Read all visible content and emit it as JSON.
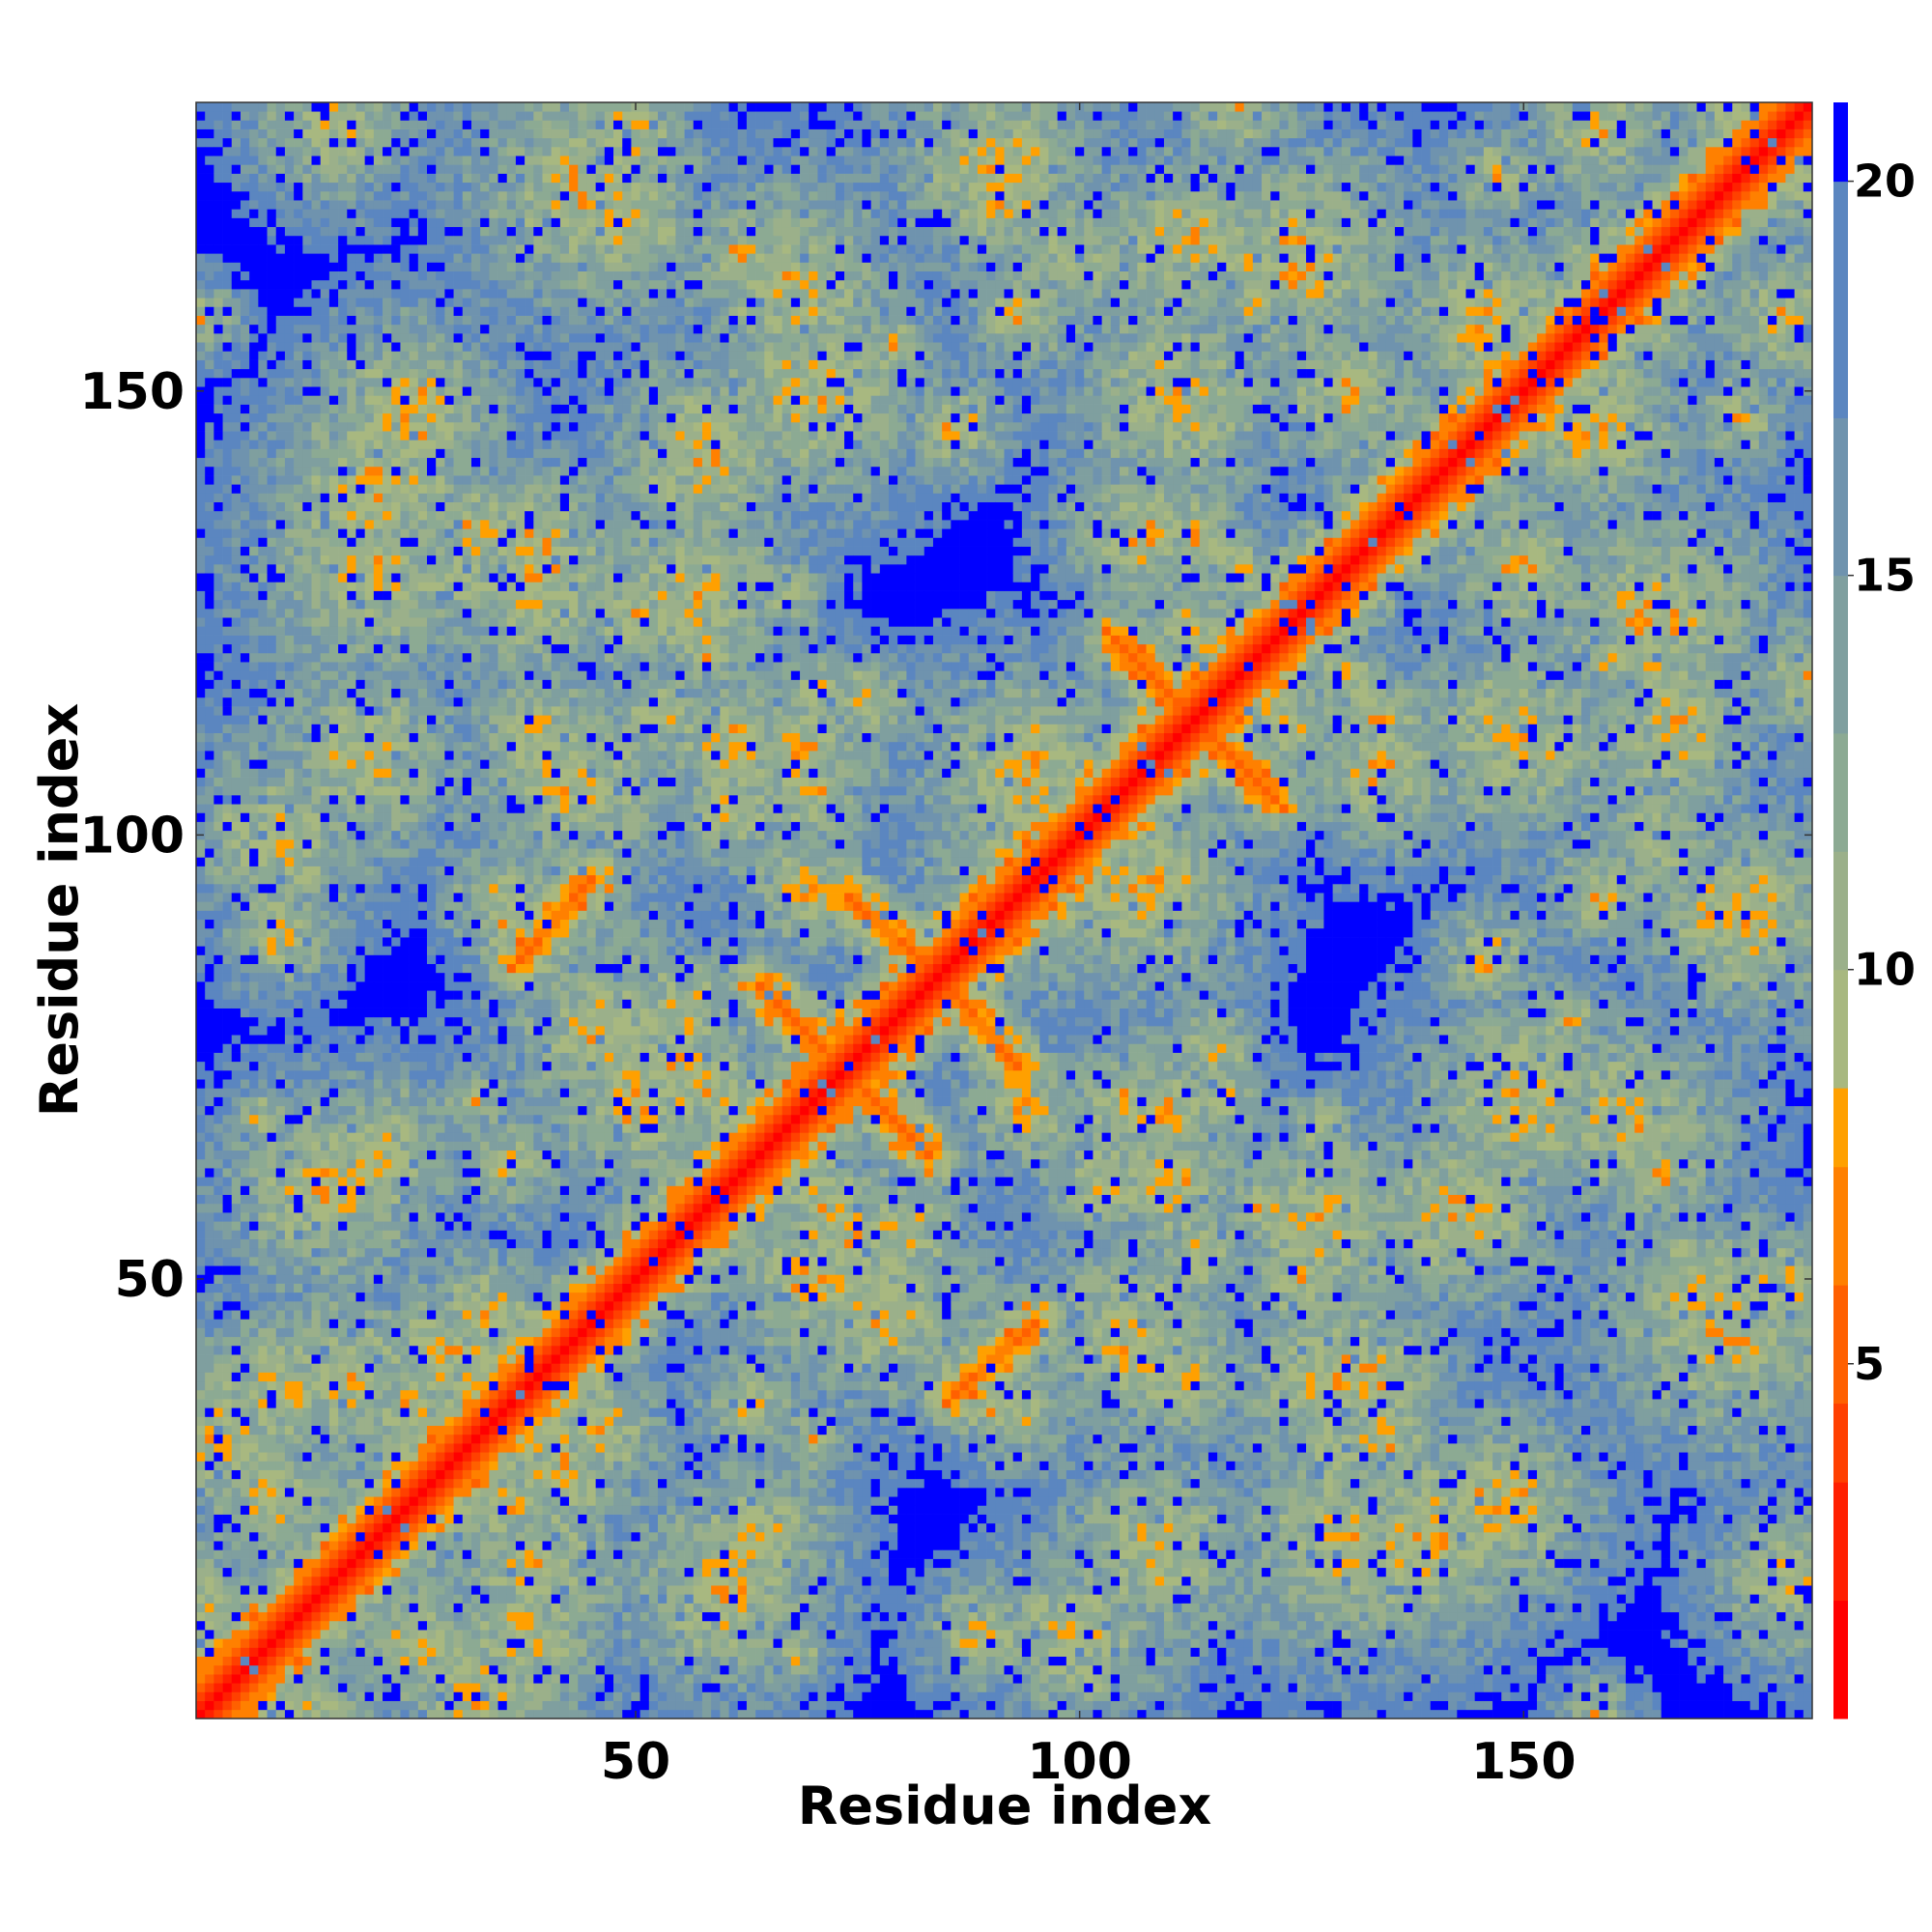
{
  "chart_data": {
    "type": "heatmap",
    "title": "",
    "xlabel": "Residue index",
    "ylabel": "Residue index",
    "xlim": [
      1,
      182
    ],
    "ylim": [
      1,
      182
    ],
    "x_ticks": [
      50,
      100,
      150
    ],
    "y_ticks": [
      50,
      100,
      150
    ],
    "colorbar": {
      "ticks": [
        5,
        10,
        15,
        20
      ],
      "range": [
        0.5,
        21
      ],
      "levels": [
        {
          "upper": 2,
          "color": "#ff0000"
        },
        {
          "upper": 3.5,
          "color": "#ff2000"
        },
        {
          "upper": 4.5,
          "color": "#ff4000"
        },
        {
          "upper": 6,
          "color": "#ff6000"
        },
        {
          "upper": 7.5,
          "color": "#ff8000"
        },
        {
          "upper": 8.5,
          "color": "#ffa000"
        },
        {
          "upper": 10,
          "color": "#a8b880"
        },
        {
          "upper": 11.5,
          "color": "#9bb08a"
        },
        {
          "upper": 13,
          "color": "#8caa93"
        },
        {
          "upper": 15,
          "color": "#7f9f9f"
        },
        {
          "upper": 17,
          "color": "#6f93ae"
        },
        {
          "upper": 20,
          "color": "#5b86c0"
        },
        {
          "upper": 99,
          "color": "#0000ff"
        }
      ]
    },
    "value_meaning": "pairwise residue distance; dense contacts (red/orange) along the main diagonal, helix crossings near residues 60-90 and 105-120, and sparse long-range clusters",
    "contact_features": [
      {
        "kind": "diagonal",
        "width": 2.5
      },
      {
        "kind": "antidiagonal",
        "x": [
          64,
          76
        ],
        "y": [
          83,
          71
        ]
      },
      {
        "kind": "antidiagonal",
        "x": [
          74,
          90
        ],
        "y": [
          93,
          79
        ]
      },
      {
        "kind": "antidiagonal",
        "x": [
          104,
          121
        ],
        "y": [
          122,
          105
        ]
      },
      {
        "kind": "parallel",
        "x": [
          37,
          45
        ],
        "y": [
          86,
          95
        ]
      },
      {
        "kind": "parallel",
        "x": [
          85,
          92
        ],
        "y": [
          38,
          45
        ]
      }
    ]
  }
}
